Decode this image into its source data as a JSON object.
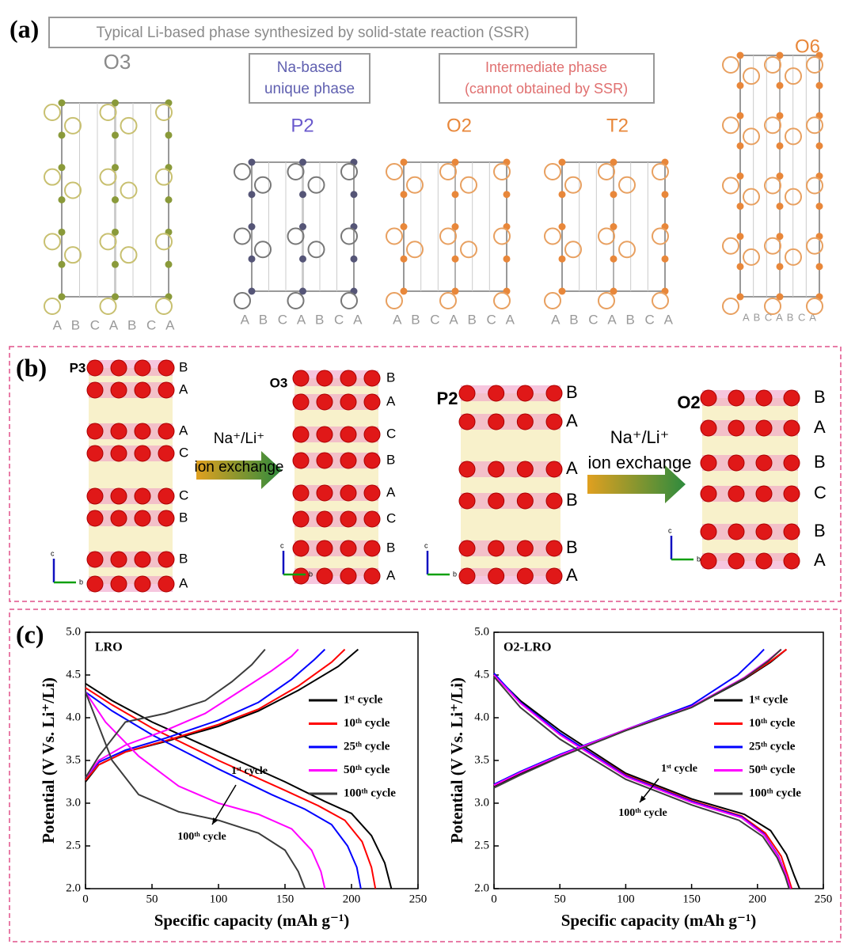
{
  "panel_a": {
    "label": "(a)",
    "banner": "Typical Li-based phase synthesized by solid-state reaction (SSR)",
    "na_box": [
      "Na-based",
      "unique phase"
    ],
    "intermediate_box": [
      "Intermediate phase",
      "(cannot obtained by SSR)"
    ],
    "structures": [
      {
        "name": "O3",
        "stacking": "A B C A B C A"
      },
      {
        "name": "P2",
        "stacking": "A B C A B C A"
      },
      {
        "name": "O2",
        "stacking": "A B C A B C A"
      },
      {
        "name": "T2",
        "stacking": "A B C A B C A"
      },
      {
        "name": "O6",
        "stacking": "A B C A B C A"
      }
    ]
  },
  "panel_b": {
    "label": "(b)",
    "exchanges": [
      [
        "Na⁺/Li⁺",
        "ion exchange"
      ],
      [
        "Na⁺/Li⁺",
        "ion exchange"
      ]
    ],
    "structures": [
      {
        "name": "P3",
        "layers": [
          "B",
          "A",
          "A",
          "C",
          "C",
          "B",
          "B",
          "A"
        ],
        "axes": [
          "c",
          "b"
        ]
      },
      {
        "name": "O3",
        "layers": [
          "B",
          "A",
          "C",
          "B",
          "A",
          "C",
          "B",
          "A"
        ],
        "axes": [
          "c",
          "b"
        ]
      },
      {
        "name": "P2",
        "layers": [
          "B",
          "A",
          "A",
          "B",
          "B",
          "A"
        ],
        "axes": [
          "c",
          "b"
        ]
      },
      {
        "name": "O2",
        "layers": [
          "B",
          "A",
          "B",
          "C",
          "B",
          "A"
        ],
        "axes": [
          "c",
          "b"
        ]
      }
    ]
  },
  "panel_c": {
    "label": "(c)"
  },
  "chart_data": [
    {
      "type": "line",
      "title": "LRO",
      "xlabel": "Specific capacity (mAh g⁻¹)",
      "ylabel": "Potential (V Vs. Li⁺/Li)",
      "xlim": [
        0,
        250
      ],
      "xticks": [
        0,
        50,
        100,
        150,
        200,
        250
      ],
      "ylim": [
        2,
        5
      ],
      "yticks": [
        {
          "value": 2,
          "label": "2.0"
        },
        2.5,
        {
          "value": 3,
          "label": "3.0"
        },
        3.5,
        {
          "value": 4,
          "label": "4.0"
        },
        4.5,
        {
          "value": 5,
          "label": "5.0"
        }
      ],
      "annotations": [
        "1ˢᵗ cycle",
        "100ᵗʰ cycle"
      ],
      "series": [
        {
          "name": "1ˢᵗ cycle",
          "color": "#000000",
          "x": [
            0,
            10,
            30,
            60,
            100,
            130,
            160,
            190,
            205
          ],
          "values": [
            3.25,
            3.45,
            3.6,
            3.72,
            3.9,
            4.08,
            4.32,
            4.6,
            4.8
          ],
          "discharge_x": [
            0,
            20,
            50,
            100,
            150,
            180,
            200,
            215,
            225,
            230
          ],
          "discharge_values": [
            4.4,
            4.2,
            3.95,
            3.6,
            3.25,
            3.02,
            2.88,
            2.62,
            2.3,
            2.0
          ]
        },
        {
          "name": "10ᵗʰ cycle",
          "color": "#ff0000",
          "x": [
            0,
            10,
            30,
            60,
            100,
            130,
            160,
            185,
            195
          ],
          "values": [
            3.27,
            3.45,
            3.6,
            3.73,
            3.92,
            4.1,
            4.37,
            4.65,
            4.8
          ],
          "discharge_x": [
            0,
            20,
            50,
            100,
            150,
            175,
            195,
            208,
            215,
            218
          ],
          "discharge_values": [
            4.35,
            4.15,
            3.88,
            3.5,
            3.15,
            2.97,
            2.8,
            2.55,
            2.25,
            2.0
          ]
        },
        {
          "name": "25ᵗʰ cycle",
          "color": "#0000ff",
          "x": [
            0,
            10,
            30,
            60,
            100,
            130,
            155,
            172,
            180
          ],
          "values": [
            3.3,
            3.48,
            3.62,
            3.76,
            3.97,
            4.18,
            4.45,
            4.68,
            4.8
          ],
          "discharge_x": [
            0,
            20,
            50,
            100,
            140,
            165,
            185,
            197,
            204,
            207
          ],
          "discharge_values": [
            4.3,
            4.08,
            3.8,
            3.4,
            3.1,
            2.93,
            2.75,
            2.5,
            2.25,
            2.0
          ]
        },
        {
          "name": "50ᵗʰ cycle",
          "color": "#ff00ff",
          "x": [
            0,
            10,
            30,
            60,
            90,
            115,
            140,
            155,
            160
          ],
          "values": [
            3.3,
            3.5,
            3.68,
            3.85,
            4.05,
            4.3,
            4.55,
            4.72,
            4.8
          ],
          "discharge_x": [
            0,
            15,
            40,
            70,
            100,
            130,
            155,
            170,
            177,
            180
          ],
          "discharge_values": [
            4.3,
            3.95,
            3.55,
            3.2,
            3.0,
            2.87,
            2.7,
            2.45,
            2.2,
            2.0
          ]
        },
        {
          "name": "100ᵗʰ cycle",
          "color": "#3c3c3c",
          "x": [
            0,
            10,
            30,
            60,
            90,
            110,
            125,
            135
          ],
          "values": [
            3.3,
            3.55,
            3.95,
            4.05,
            4.2,
            4.42,
            4.62,
            4.8
          ],
          "discharge_x": [
            0,
            10,
            20,
            40,
            70,
            100,
            130,
            150,
            160,
            165
          ],
          "discharge_values": [
            4.3,
            3.9,
            3.5,
            3.1,
            2.9,
            2.8,
            2.65,
            2.45,
            2.2,
            2.0
          ]
        }
      ]
    },
    {
      "type": "line",
      "title": "O2-LRO",
      "xlabel": "Specific capacity (mAh g⁻¹)",
      "ylabel": "Potential (V Vs. Li⁺/Li)",
      "xlim": [
        0,
        250
      ],
      "xticks": [
        0,
        50,
        100,
        150,
        200,
        250
      ],
      "ylim": [
        2,
        5
      ],
      "yticks": [
        {
          "value": 2,
          "label": "2.0"
        },
        2.5,
        {
          "value": 3,
          "label": "3.0"
        },
        3.5,
        {
          "value": 4,
          "label": "4.0"
        },
        4.5,
        {
          "value": 5,
          "label": "5.0"
        }
      ],
      "annotations": [
        "1ˢᵗ cycle",
        "100ᵗʰ cycle"
      ],
      "series": [
        {
          "name": "1ˢᵗ cycle",
          "color": "#000000",
          "x": [
            0,
            20,
            50,
            100,
            150,
            190,
            210,
            222
          ],
          "values": [
            3.2,
            3.35,
            3.55,
            3.85,
            4.12,
            4.45,
            4.65,
            4.8
          ],
          "discharge_x": [
            0,
            20,
            50,
            100,
            150,
            190,
            210,
            222,
            228,
            232
          ],
          "discharge_values": [
            4.5,
            4.2,
            3.85,
            3.35,
            3.05,
            2.87,
            2.68,
            2.4,
            2.15,
            2.0
          ]
        },
        {
          "name": "10ᵗʰ cycle",
          "color": "#ff0000",
          "x": [
            0,
            20,
            50,
            100,
            150,
            190,
            210,
            222
          ],
          "values": [
            3.21,
            3.36,
            3.56,
            3.86,
            4.13,
            4.46,
            4.66,
            4.8
          ],
          "discharge_x": [
            0,
            20,
            50,
            100,
            150,
            188,
            206,
            218,
            223,
            226
          ],
          "discharge_values": [
            4.5,
            4.18,
            3.82,
            3.33,
            3.03,
            2.85,
            2.65,
            2.38,
            2.15,
            2.0
          ]
        },
        {
          "name": "25ᵗʰ cycle",
          "color": "#0000ff",
          "x": [
            0,
            20,
            50,
            100,
            150,
            185,
            200,
            205
          ],
          "values": [
            3.22,
            3.37,
            3.57,
            3.86,
            4.15,
            4.5,
            4.72,
            4.8
          ],
          "discharge_x": [
            0,
            20,
            50,
            100,
            150,
            188,
            205,
            216,
            222,
            225
          ],
          "discharge_values": [
            4.52,
            4.18,
            3.82,
            3.32,
            3.02,
            2.84,
            2.64,
            2.38,
            2.15,
            2.0
          ]
        },
        {
          "name": "50ᵗʰ cycle",
          "color": "#ff00ff",
          "x": [
            0,
            20,
            50,
            100,
            150,
            190,
            208,
            218
          ],
          "values": [
            3.21,
            3.36,
            3.56,
            3.86,
            4.13,
            4.47,
            4.67,
            4.8
          ],
          "discharge_x": [
            0,
            20,
            50,
            100,
            150,
            188,
            205,
            216,
            222,
            225
          ],
          "discharge_values": [
            4.5,
            4.17,
            3.8,
            3.31,
            3.01,
            2.83,
            2.63,
            2.37,
            2.15,
            2.0
          ]
        },
        {
          "name": "100ᵗʰ cycle",
          "color": "#3c3c3c",
          "x": [
            0,
            20,
            50,
            100,
            150,
            190,
            208,
            218
          ],
          "values": [
            3.18,
            3.33,
            3.54,
            3.85,
            4.12,
            4.46,
            4.66,
            4.8
          ],
          "discharge_x": [
            0,
            20,
            50,
            100,
            150,
            186,
            204,
            215,
            221,
            224
          ],
          "discharge_values": [
            4.48,
            4.12,
            3.75,
            3.28,
            2.98,
            2.8,
            2.61,
            2.36,
            2.15,
            2.0
          ]
        }
      ]
    }
  ]
}
